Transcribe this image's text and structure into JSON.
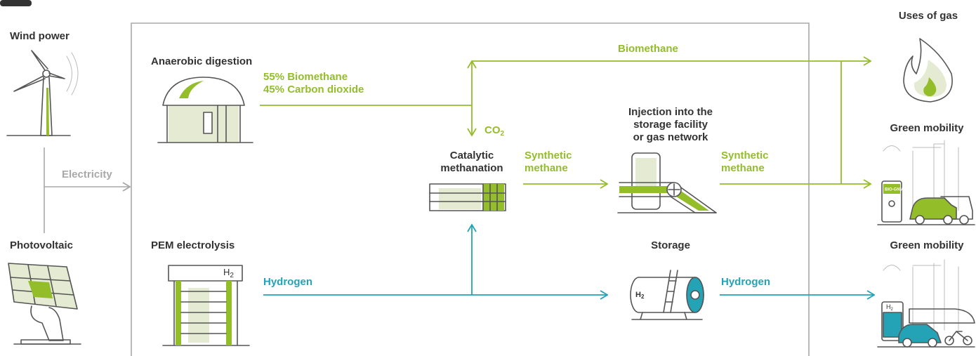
{
  "sources": {
    "wind": "Wind power",
    "solar": "Photovoltaic",
    "link": "Electricity"
  },
  "processes": {
    "digestion": {
      "title": "Anaerobic digestion",
      "output": [
        "55% Biomethane",
        "45% Carbon dioxide"
      ]
    },
    "biomethane": "Biomethane",
    "electrolysis": {
      "title": "PEM electrolysis",
      "badge": {
        "main": "H",
        "sub": "2"
      },
      "output": "Hydrogen"
    },
    "methanation": {
      "title": [
        "Catalytic",
        "methanation"
      ],
      "input": {
        "main": "CO",
        "sub": "2"
      },
      "output": [
        "Synthetic",
        "methane"
      ]
    },
    "injection": {
      "title": [
        "Injection into the",
        "storage facility",
        "or gas network"
      ],
      "output": [
        "Synthetic",
        "methane"
      ]
    },
    "storage": {
      "title": "Storage",
      "badge": {
        "main": "H",
        "sub": "2"
      },
      "output": "Hydrogen"
    }
  },
  "uses": [
    {
      "title": "Uses of gas"
    },
    {
      "title": "Green mobility",
      "badge": "BIO-GNV"
    },
    {
      "title": "Green mobility",
      "badge": {
        "main": "H",
        "sub": "2"
      }
    }
  ]
}
